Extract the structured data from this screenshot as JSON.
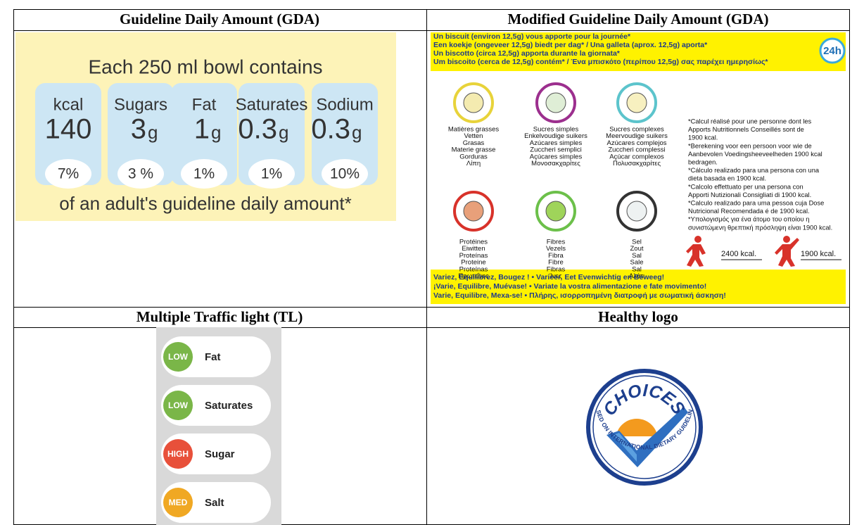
{
  "headers": [
    "Guideline Daily Amount (GDA)",
    "Modified Guideline Daily Amount (GDA)",
    "Multiple Traffic light (TL)",
    "Healthy logo"
  ],
  "gda": {
    "heading": "Each 250 ml bowl contains",
    "items": [
      {
        "name": "kcal",
        "amount": "140",
        "percent": "7%"
      },
      {
        "name": "Sugars",
        "amount": "3",
        "unit": "g",
        "percent": "3 %"
      },
      {
        "name": "Fat",
        "amount": "1",
        "unit": "g",
        "percent": "1%"
      },
      {
        "name": "Saturates",
        "amount": "0.3",
        "unit": "g",
        "percent": "1%"
      },
      {
        "name": "Sodium",
        "amount": "0.3",
        "unit": "g",
        "percent": "10%"
      }
    ],
    "footer": "of an adult's guideline daily amount*"
  },
  "modified": {
    "top_lines": [
      "Un biscuit (environ 12,5g) vous apporte pour la journée*",
      "Een koekje (ongeveer 12,5g) biedt per dag* / Una galleta (aprox. 12,5g) aporta*",
      "Un biscotto (circa 12,5g) apporta durante la giornata*",
      "Um biscoito (cerca de 12,5g) contém* / Ένα μπισκότο (περίπου 12,5g) σας παρέχει ημερησίως*"
    ],
    "badge": "24h",
    "nutrients": [
      {
        "lines": [
          "Matières grasses",
          "Vetten",
          "Grasas",
          "Materie grasse",
          "Gorduras",
          "Λίπη"
        ]
      },
      {
        "lines": [
          "Sucres simples",
          "Enkelvoudige suikers",
          "Azúcares simples",
          "Zuccheri semplici",
          "Açúcares simples",
          "Μονοσακχαρίτες"
        ]
      },
      {
        "lines": [
          "Sucres complexes",
          "Meervoudige suikers",
          "Azúcares complejos",
          "Zuccheri complessi",
          "Açúcar complexos",
          "Πολυσακχαρίτες"
        ]
      },
      {
        "lines": [
          "Protéines",
          "Eiwitten",
          "Proteínas",
          "Proteine",
          "Proteínas",
          "Πρωτεΐνες"
        ]
      },
      {
        "lines": [
          "Fibres",
          "Vezels",
          "Fibra",
          "Fibre",
          "Fibras",
          "Ίνες"
        ]
      },
      {
        "lines": [
          "Sel",
          "Zout",
          "Sal",
          "Sale",
          "Sal",
          "Αλάτι"
        ]
      }
    ],
    "notes": [
      "*Calcul réalisé pour une personne dont les",
      "Apports Nutritionnels Conseillés sont de",
      "1900 kcal.",
      "*Berekening voor een persoon voor wie de",
      "Aanbevolen Voedingsheeveelheden 1900 kcal",
      "bedragen.",
      "*Cálculo realizado para una persona con una",
      "dieta basada en 1900 kcal.",
      "*Calcolo effettuato per una persona con",
      "Apporti Nutizionali Consigliati di 1900 kcal.",
      "*Calculo realizado para uma pessoa cuja Dose",
      "Nutricional Recomendada é de 1900 kcal.",
      "*Υπολογισμός για ένα άτομο του οποίου η",
      "συνιστώμενη θρεπτική πρόσληψη είναι 1900 kcal."
    ],
    "energy": [
      "2400 kcal.",
      "1900 kcal."
    ],
    "bottom_lines": [
      "Variez, Equilibrez, Bougez !  •  Varieer, Eet Evenwichtig en Beweeg!",
      "¡Varie, Equilibre, Muévase!  •  Variate la vostra alimentazione e fate movimento!",
      "Varie, Equilibre, Mexa-se!  •  Πλήρης, ισορροπημένη διατροφή με σωματική άσκηση!"
    ]
  },
  "traffic_light": {
    "items": [
      {
        "level": "LOW",
        "name": "Fat",
        "color": "#7ab648"
      },
      {
        "level": "LOW",
        "name": "Saturates",
        "color": "#7ab648"
      },
      {
        "level": "HIGH",
        "name": "Sugar",
        "color": "#e8503a"
      },
      {
        "level": "MED",
        "name": "Salt",
        "color": "#f0a823"
      }
    ]
  },
  "logo": {
    "name": "CHOICES",
    "tagline": "BASED ON INTERNATIONAL DIETARY GUIDELINES"
  }
}
